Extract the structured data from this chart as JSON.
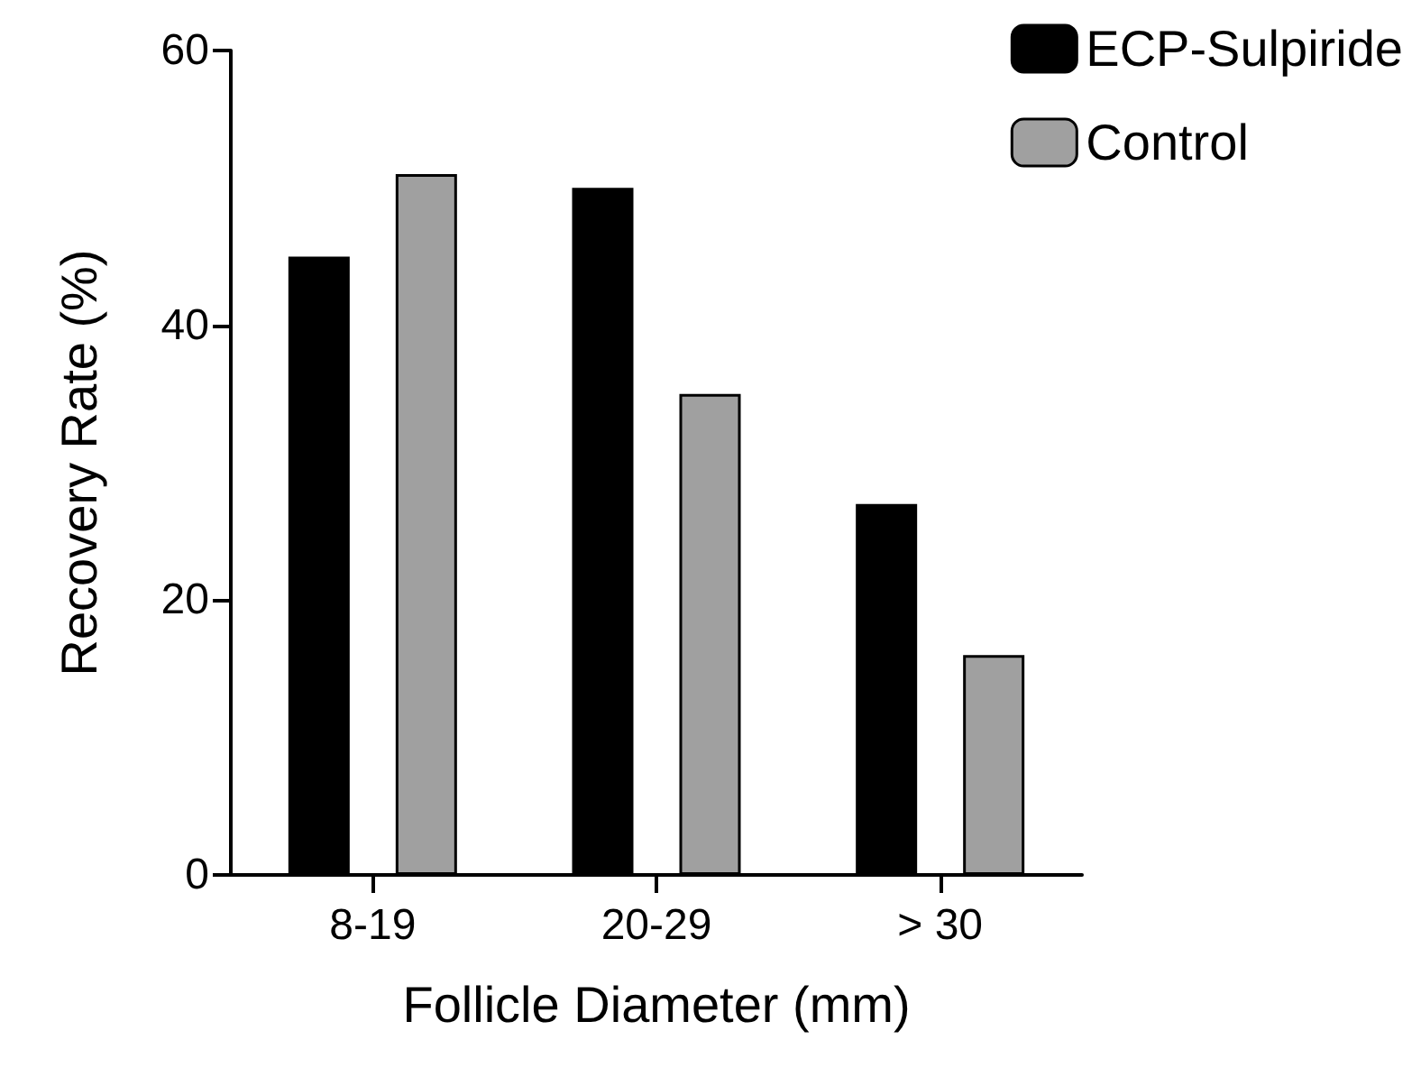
{
  "chart_data": {
    "type": "bar",
    "xlabel": "Follicle Diameter (mm)",
    "ylabel": "Recovery Rate (%)",
    "categories": [
      "8-19",
      "20-29",
      "> 30"
    ],
    "series": [
      {
        "name": "ECP-Sulpiride",
        "color": "#000000",
        "values": [
          45,
          50,
          27
        ]
      },
      {
        "name": "Control",
        "color": "#a0a0a0",
        "values": [
          51,
          35,
          16
        ]
      }
    ],
    "ylim": [
      0,
      60
    ],
    "yticks": [
      0,
      20,
      40,
      60
    ],
    "grid": false,
    "legend": "top right"
  }
}
